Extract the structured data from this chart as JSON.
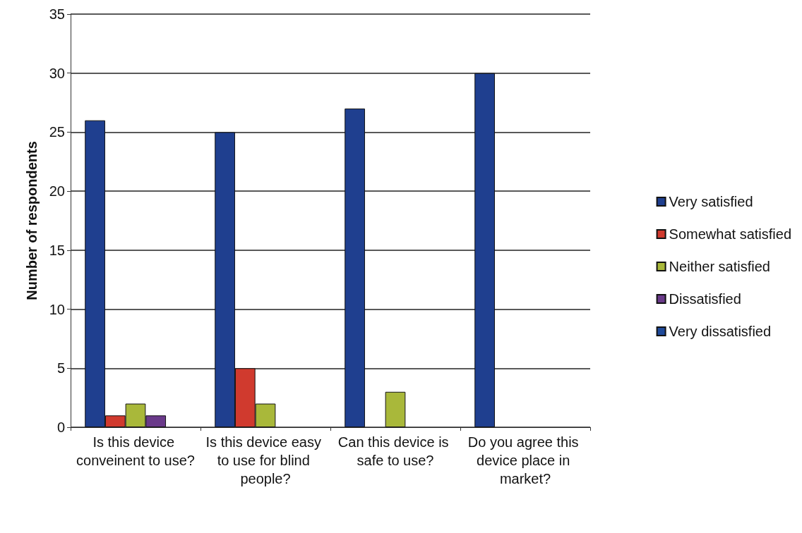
{
  "chart_data": {
    "type": "bar",
    "ylabel": "Number of respondents",
    "categories": [
      "Is this device conveinent to use?",
      "Is this device easy to use for blind people?",
      "Can this device is safe to use?",
      "Do you agree this device place in market?"
    ],
    "series": [
      {
        "name": "Very satisfied",
        "color": "#1f3f8f",
        "values": [
          26,
          25,
          27,
          30
        ]
      },
      {
        "name": "Somewhat satisfied",
        "color": "#d03a2e",
        "values": [
          1,
          5,
          0,
          0
        ]
      },
      {
        "name": "Neither satisfied",
        "color": "#a9b83a",
        "values": [
          2,
          2,
          3,
          0
        ]
      },
      {
        "name": "Dissatisfied",
        "color": "#6a3a8a",
        "values": [
          1,
          0,
          0,
          0
        ]
      },
      {
        "name": "Very dissatisfied",
        "color": "#1f4a9a",
        "values": [
          0,
          0,
          0,
          0
        ]
      }
    ],
    "ylim": [
      0,
      35
    ],
    "yticks": [
      0,
      5,
      10,
      15,
      20,
      25,
      30,
      35
    ],
    "grid": "y",
    "legend": "right"
  }
}
